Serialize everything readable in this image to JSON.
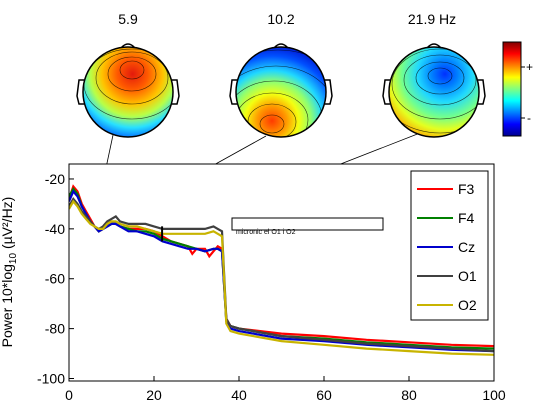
{
  "chart_data": {
    "type": "line",
    "ylabel": {
      "prefix": "Power 10*log",
      "sub": "10",
      "suffix": " (µV²/Hz)"
    },
    "xlim": [
      0,
      100
    ],
    "ylim": [
      -101,
      -14
    ],
    "xticks": [
      0,
      20,
      40,
      60,
      80,
      100
    ],
    "yticks": [
      -20,
      -40,
      -60,
      -80,
      -100
    ],
    "grid": false,
    "legend_placement": "right",
    "annotation": "micronic el O1 i O2",
    "topomap_frequencies": [
      {
        "label": "5.9",
        "freq": 5.9,
        "y": -38
      },
      {
        "label": "10.2",
        "freq": 10.2,
        "y": -37
      },
      {
        "label": "21.9 Hz",
        "freq": 21.9,
        "y": -42
      }
    ],
    "colorbar": {
      "plus": "+",
      "minus": "-"
    },
    "series": [
      {
        "name": "F3",
        "color": "#ff0000",
        "points": [
          [
            0,
            -28
          ],
          [
            1,
            -23
          ],
          [
            2,
            -25
          ],
          [
            3,
            -30
          ],
          [
            4,
            -33
          ],
          [
            5,
            -36
          ],
          [
            6,
            -39
          ],
          [
            7,
            -41
          ],
          [
            8,
            -40
          ],
          [
            9,
            -39
          ],
          [
            10,
            -38
          ],
          [
            11,
            -38
          ],
          [
            12,
            -39
          ],
          [
            14,
            -40
          ],
          [
            16,
            -40
          ],
          [
            18,
            -40
          ],
          [
            20,
            -41
          ],
          [
            22,
            -43
          ],
          [
            24,
            -45
          ],
          [
            26,
            -46
          ],
          [
            28,
            -47
          ],
          [
            29,
            -50
          ],
          [
            30,
            -48
          ],
          [
            32,
            -48
          ],
          [
            33,
            -51
          ],
          [
            34,
            -49
          ],
          [
            35,
            -47
          ],
          [
            36,
            -48
          ],
          [
            37,
            -76
          ],
          [
            38,
            -79
          ],
          [
            40,
            -80
          ],
          [
            50,
            -82
          ],
          [
            60,
            -83
          ],
          [
            70,
            -84.5
          ],
          [
            80,
            -85.5
          ],
          [
            90,
            -86.5
          ],
          [
            100,
            -87
          ]
        ]
      },
      {
        "name": "F4",
        "color": "#008000",
        "points": [
          [
            0,
            -27
          ],
          [
            1,
            -24
          ],
          [
            2,
            -26
          ],
          [
            3,
            -31
          ],
          [
            4,
            -34
          ],
          [
            5,
            -37
          ],
          [
            6,
            -39
          ],
          [
            7,
            -41
          ],
          [
            8,
            -40
          ],
          [
            9,
            -39
          ],
          [
            10,
            -38
          ],
          [
            11,
            -38
          ],
          [
            12,
            -39
          ],
          [
            14,
            -40
          ],
          [
            16,
            -41
          ],
          [
            18,
            -41
          ],
          [
            20,
            -42
          ],
          [
            22,
            -44
          ],
          [
            24,
            -45
          ],
          [
            26,
            -46
          ],
          [
            28,
            -47
          ],
          [
            30,
            -48
          ],
          [
            32,
            -49
          ],
          [
            34,
            -48
          ],
          [
            35,
            -48
          ],
          [
            36,
            -49
          ],
          [
            37,
            -77
          ],
          [
            38,
            -79
          ],
          [
            40,
            -80
          ],
          [
            50,
            -83
          ],
          [
            60,
            -84
          ],
          [
            70,
            -85.5
          ],
          [
            80,
            -86.5
          ],
          [
            90,
            -87.5
          ],
          [
            100,
            -88
          ]
        ]
      },
      {
        "name": "Cz",
        "color": "#0000cc",
        "points": [
          [
            0,
            -29
          ],
          [
            1,
            -25
          ],
          [
            2,
            -27
          ],
          [
            3,
            -31
          ],
          [
            4,
            -34
          ],
          [
            5,
            -37
          ],
          [
            6,
            -39
          ],
          [
            7,
            -41
          ],
          [
            8,
            -40
          ],
          [
            9,
            -39
          ],
          [
            10,
            -38
          ],
          [
            11,
            -38
          ],
          [
            12,
            -39
          ],
          [
            14,
            -41
          ],
          [
            16,
            -41
          ],
          [
            18,
            -42
          ],
          [
            20,
            -43
          ],
          [
            22,
            -45
          ],
          [
            24,
            -46
          ],
          [
            26,
            -47
          ],
          [
            28,
            -48
          ],
          [
            30,
            -48
          ],
          [
            32,
            -49
          ],
          [
            34,
            -48
          ],
          [
            35,
            -48
          ],
          [
            36,
            -49
          ],
          [
            37,
            -77
          ],
          [
            38,
            -80
          ],
          [
            40,
            -81
          ],
          [
            50,
            -84
          ],
          [
            60,
            -85
          ],
          [
            70,
            -86.5
          ],
          [
            80,
            -87.5
          ],
          [
            90,
            -88.5
          ],
          [
            100,
            -89
          ]
        ]
      },
      {
        "name": "O1",
        "color": "#404040",
        "points": [
          [
            0,
            -31
          ],
          [
            1,
            -28
          ],
          [
            2,
            -30
          ],
          [
            3,
            -33
          ],
          [
            4,
            -35
          ],
          [
            5,
            -37
          ],
          [
            6,
            -39
          ],
          [
            7,
            -40
          ],
          [
            8,
            -39
          ],
          [
            9,
            -37
          ],
          [
            10,
            -36
          ],
          [
            11,
            -35
          ],
          [
            12,
            -37
          ],
          [
            14,
            -38
          ],
          [
            16,
            -38
          ],
          [
            18,
            -38
          ],
          [
            20,
            -39
          ],
          [
            22,
            -40
          ],
          [
            24,
            -40
          ],
          [
            26,
            -40
          ],
          [
            28,
            -40
          ],
          [
            30,
            -40
          ],
          [
            32,
            -40
          ],
          [
            34,
            -39
          ],
          [
            35,
            -40
          ],
          [
            36,
            -41
          ],
          [
            37,
            -76
          ],
          [
            38,
            -79
          ],
          [
            40,
            -80
          ],
          [
            50,
            -83
          ],
          [
            60,
            -84.5
          ],
          [
            70,
            -86
          ],
          [
            80,
            -87
          ],
          [
            90,
            -88
          ],
          [
            100,
            -89
          ]
        ]
      },
      {
        "name": "O2",
        "color": "#c8b400",
        "points": [
          [
            0,
            -32
          ],
          [
            1,
            -29
          ],
          [
            2,
            -31
          ],
          [
            3,
            -34
          ],
          [
            4,
            -36
          ],
          [
            5,
            -38
          ],
          [
            6,
            -39
          ],
          [
            7,
            -40
          ],
          [
            8,
            -40
          ],
          [
            9,
            -38
          ],
          [
            10,
            -37
          ],
          [
            11,
            -37
          ],
          [
            12,
            -38
          ],
          [
            14,
            -39
          ],
          [
            16,
            -39
          ],
          [
            18,
            -40
          ],
          [
            20,
            -41
          ],
          [
            22,
            -42
          ],
          [
            24,
            -42
          ],
          [
            26,
            -42
          ],
          [
            28,
            -42
          ],
          [
            30,
            -42
          ],
          [
            32,
            -42
          ],
          [
            34,
            -41
          ],
          [
            35,
            -42
          ],
          [
            36,
            -43
          ],
          [
            37,
            -78
          ],
          [
            38,
            -81
          ],
          [
            40,
            -82
          ],
          [
            50,
            -85
          ],
          [
            60,
            -86.5
          ],
          [
            70,
            -88
          ],
          [
            80,
            -89
          ],
          [
            90,
            -90
          ],
          [
            100,
            -90.5
          ]
        ]
      }
    ]
  }
}
